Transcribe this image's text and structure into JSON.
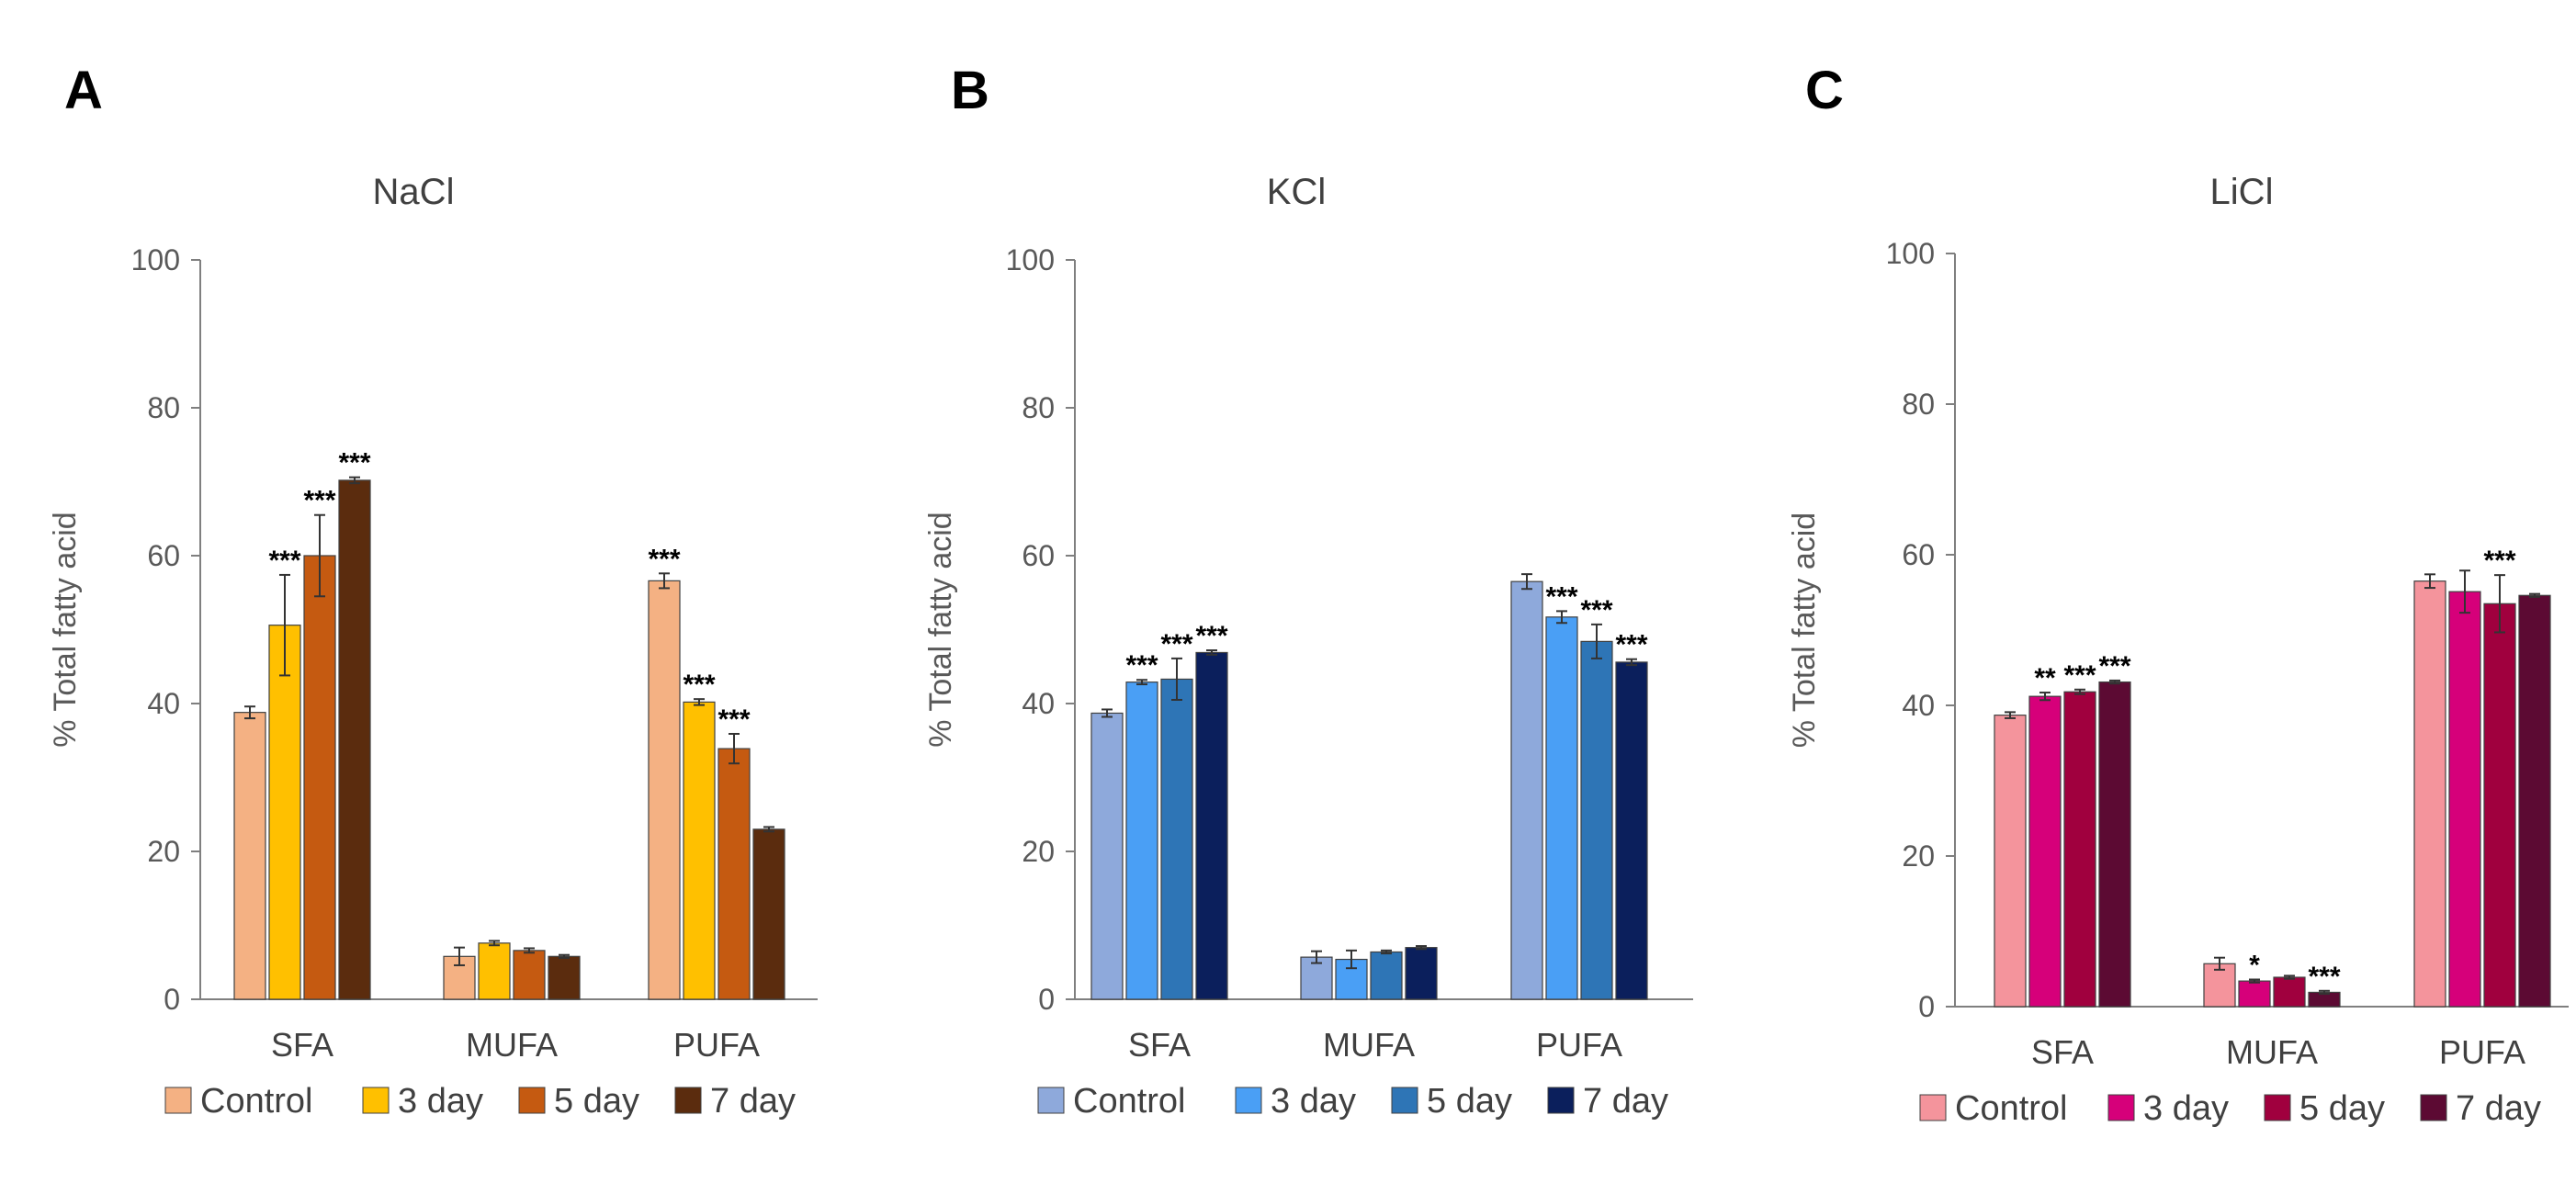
{
  "chart_data": [
    {
      "type": "bar",
      "panel": "A",
      "title": "NaCl",
      "ylabel": "% Total fatty acid",
      "xlabel": "",
      "ylim": [
        0,
        100
      ],
      "yticks": [
        "0",
        "20",
        "40",
        "60",
        "80",
        "100"
      ],
      "categories": [
        "SFA",
        "MUFA",
        "PUFA"
      ],
      "colors": [
        "#F4B183",
        "#FFC000",
        "#C55A11",
        "#5B2C0E"
      ],
      "legend_position": "bottom",
      "series": [
        {
          "name": "Control",
          "values": [
            38.8,
            5.8,
            56.6
          ],
          "errors": [
            0.8,
            1.2,
            1.0
          ],
          "sig": [
            "",
            "",
            "***"
          ]
        },
        {
          "name": "3 day",
          "values": [
            50.6,
            7.6,
            40.2
          ],
          "errors": [
            6.8,
            0.3,
            0.4
          ],
          "sig": [
            "***",
            "",
            "***"
          ]
        },
        {
          "name": "5 day",
          "values": [
            60.0,
            6.6,
            33.9
          ],
          "errors": [
            5.5,
            0.3,
            2.0
          ],
          "sig": [
            "***",
            "",
            "***"
          ]
        },
        {
          "name": "7 day",
          "values": [
            70.2,
            5.8,
            23.0
          ],
          "errors": [
            0.4,
            0.2,
            0.3
          ],
          "sig": [
            "***",
            "",
            ""
          ]
        }
      ]
    },
    {
      "type": "bar",
      "panel": "B",
      "title": "KCl",
      "ylabel": "% Total fatty acid",
      "xlabel": "",
      "ylim": [
        0,
        100
      ],
      "yticks": [
        "0",
        "20",
        "40",
        "60",
        "80",
        "100"
      ],
      "categories": [
        "SFA",
        "MUFA",
        "PUFA"
      ],
      "colors": [
        "#8EA9DB",
        "#4A9FF5",
        "#2E75B6",
        "#0B1F5C"
      ],
      "legend_position": "bottom",
      "series": [
        {
          "name": "Control",
          "values": [
            38.7,
            5.7,
            56.5
          ],
          "errors": [
            0.5,
            0.8,
            1.0
          ],
          "sig": [
            "",
            "",
            ""
          ]
        },
        {
          "name": "3 day",
          "values": [
            42.9,
            5.4,
            51.7
          ],
          "errors": [
            0.3,
            1.2,
            0.8
          ],
          "sig": [
            "***",
            "",
            "***"
          ]
        },
        {
          "name": "5 day",
          "values": [
            43.3,
            6.4,
            48.4
          ],
          "errors": [
            2.8,
            0.2,
            2.3
          ],
          "sig": [
            "***",
            "",
            "***"
          ]
        },
        {
          "name": "7 day",
          "values": [
            46.9,
            7.0,
            45.6
          ],
          "errors": [
            0.3,
            0.2,
            0.4
          ],
          "sig": [
            "***",
            "",
            "***"
          ]
        }
      ]
    },
    {
      "type": "bar",
      "panel": "C",
      "title": "LiCl",
      "ylabel": "% Total fatty acid",
      "xlabel": "",
      "ylim": [
        0,
        100
      ],
      "yticks": [
        "0",
        "20",
        "40",
        "60",
        "80",
        "100"
      ],
      "categories": [
        "SFA",
        "MUFA",
        "PUFA"
      ],
      "colors": [
        "#F4949C",
        "#D6007A",
        "#A0003E",
        "#5C0A33"
      ],
      "legend_position": "bottom",
      "series": [
        {
          "name": "Control",
          "values": [
            38.7,
            5.7,
            56.5
          ],
          "errors": [
            0.4,
            0.8,
            0.9
          ],
          "sig": [
            "",
            "",
            ""
          ]
        },
        {
          "name": "3 day",
          "values": [
            41.2,
            3.4,
            55.1
          ],
          "errors": [
            0.5,
            0.2,
            2.8
          ],
          "sig": [
            "**",
            "*",
            ""
          ]
        },
        {
          "name": "5 day",
          "values": [
            41.8,
            3.9,
            53.5
          ],
          "errors": [
            0.3,
            0.2,
            3.8
          ],
          "sig": [
            "***",
            "",
            "***"
          ]
        },
        {
          "name": "7 day",
          "values": [
            43.1,
            1.9,
            54.6
          ],
          "errors": [
            0.2,
            0.2,
            0.2
          ],
          "sig": [
            "***",
            "***",
            ""
          ]
        }
      ]
    }
  ]
}
